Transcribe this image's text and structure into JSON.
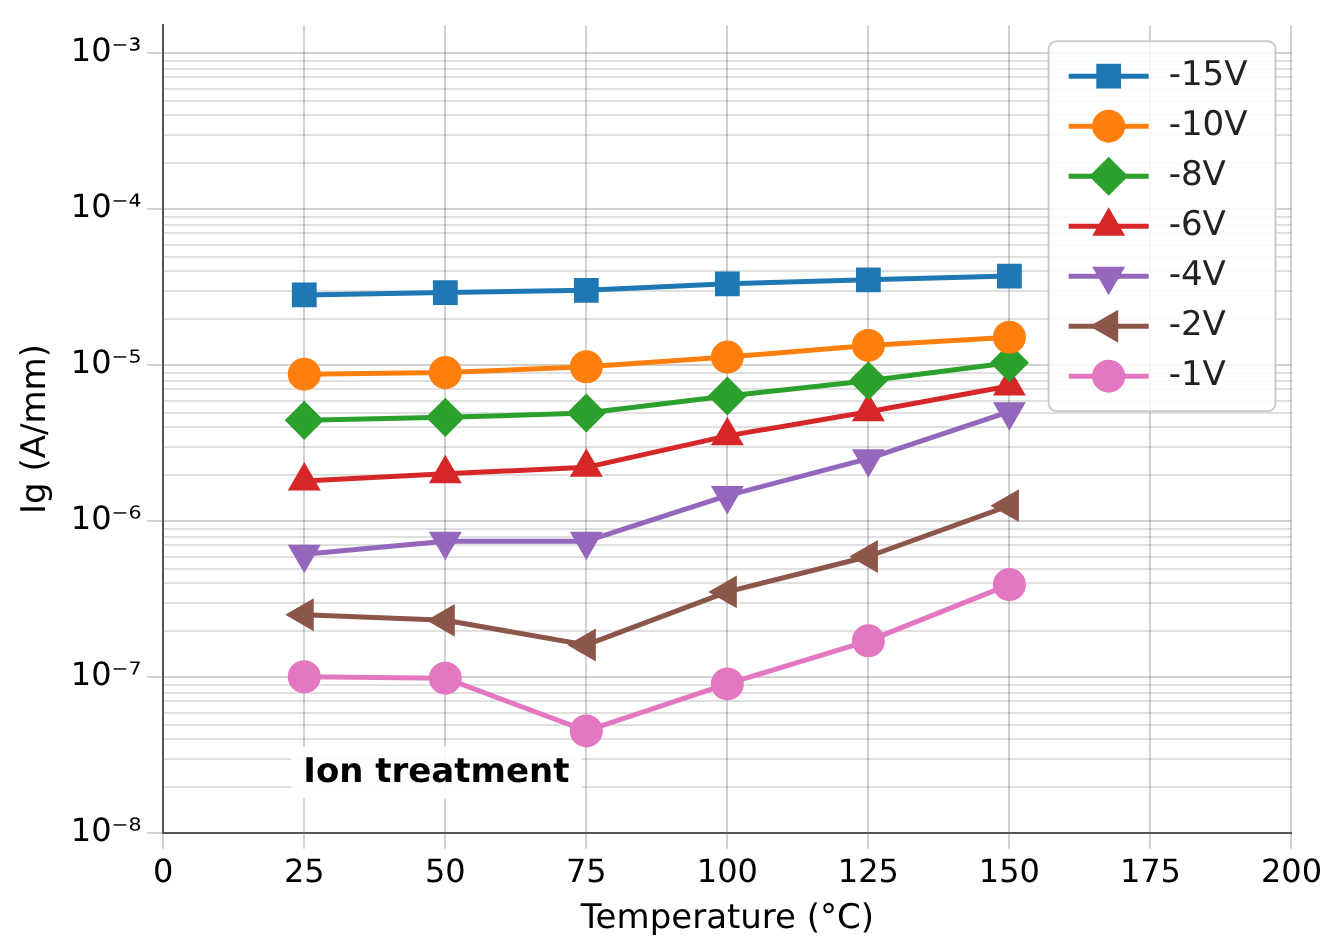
{
  "chart_data": {
    "type": "line",
    "xlabel": "Temperature (°C)",
    "ylabel": "Ig (A/mm)",
    "annotations": [
      "Ion treatment"
    ],
    "x": [
      25,
      50,
      75,
      100,
      125,
      150
    ],
    "series": [
      {
        "name": "-15V",
        "color": "#1f77b4",
        "marker": "square",
        "values": [
          2.8e-05,
          2.9e-05,
          3e-05,
          3.3e-05,
          3.5e-05,
          3.7e-05
        ]
      },
      {
        "name": "-10V",
        "color": "#ff7f0e",
        "marker": "circle",
        "values": [
          8.7e-06,
          8.9e-06,
          9.7e-06,
          1.12e-05,
          1.33e-05,
          1.5e-05
        ]
      },
      {
        "name": "-8V",
        "color": "#2ca02c",
        "marker": "diamond",
        "values": [
          4.4e-06,
          4.6e-06,
          4.9e-06,
          6.3e-06,
          7.9e-06,
          1.03e-05
        ]
      },
      {
        "name": "-6V",
        "color": "#d62728",
        "marker": "triangle",
        "values": [
          1.8e-06,
          2e-06,
          2.2e-06,
          3.5e-06,
          5e-06,
          7.3e-06
        ]
      },
      {
        "name": "-4V",
        "color": "#9467bd",
        "marker": "triangle",
        "values": [
          6.1e-07,
          7.4e-07,
          7.4e-07,
          1.45e-06,
          2.5e-06,
          5e-06
        ]
      },
      {
        "name": "-2V",
        "color": "#8c564b",
        "marker": "triangle",
        "values": [
          2.5e-07,
          2.3e-07,
          1.6e-07,
          3.5e-07,
          5.9e-07,
          1.25e-06
        ]
      },
      {
        "name": "-1V",
        "color": "#e377c2",
        "marker": "circle",
        "values": [
          1e-07,
          9.8e-08,
          4.5e-08,
          9e-08,
          1.7e-07,
          3.9e-07
        ]
      }
    ],
    "xlim": [
      0,
      200
    ],
    "xticks": [
      0,
      25,
      50,
      75,
      100,
      125,
      150,
      175,
      200
    ],
    "ylim": [
      1e-08,
      0.0015
    ],
    "yticks": [
      {
        "value": 1e-08,
        "label": "10⁻⁸"
      },
      {
        "value": 1e-07,
        "label": "10⁻⁷"
      },
      {
        "value": 1e-06,
        "label": "10⁻⁶"
      },
      {
        "value": 1e-05,
        "label": "10⁻⁵"
      },
      {
        "value": 0.0001,
        "label": "10⁻⁴"
      },
      {
        "value": 0.001,
        "label": "10⁻³"
      }
    ],
    "log": "y",
    "grid": true,
    "legend": "top right",
    "line_style": "solid"
  }
}
